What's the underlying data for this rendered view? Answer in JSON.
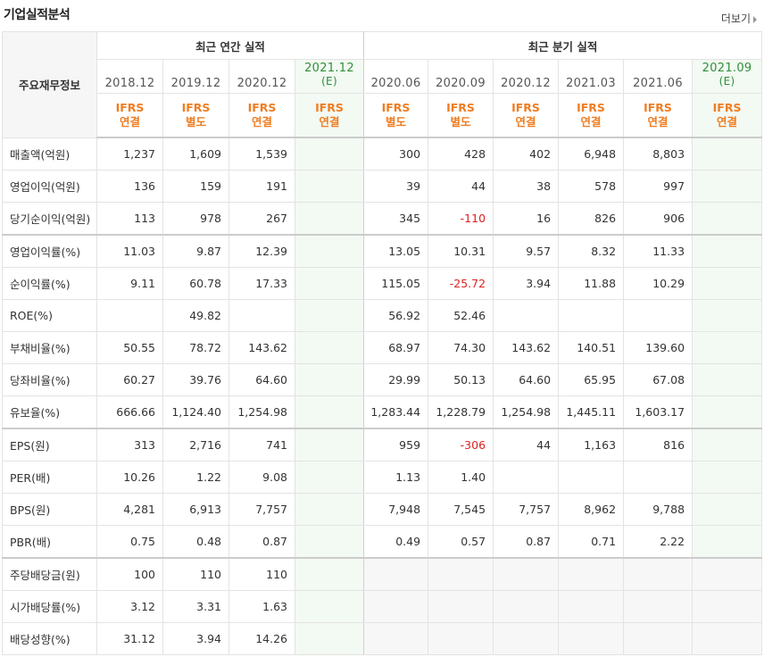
{
  "title": "기업실적분석",
  "more_label": "더보기",
  "header": {
    "corner": "주요재무정보",
    "group_annual": "최근 연간 실적",
    "group_quarter": "최근 분기 실적",
    "columns": [
      {
        "period": "2018.12",
        "est": "",
        "std1": "IFRS",
        "std2": "연결"
      },
      {
        "period": "2019.12",
        "est": "",
        "std1": "IFRS",
        "std2": "별도"
      },
      {
        "period": "2020.12",
        "est": "",
        "std1": "IFRS",
        "std2": "연결"
      },
      {
        "period": "2021.12",
        "est": "(E)",
        "std1": "IFRS",
        "std2": "연결"
      },
      {
        "period": "2020.06",
        "est": "",
        "std1": "IFRS",
        "std2": "별도"
      },
      {
        "period": "2020.09",
        "est": "",
        "std1": "IFRS",
        "std2": "별도"
      },
      {
        "period": "2020.12",
        "est": "",
        "std1": "IFRS",
        "std2": "연결"
      },
      {
        "period": "2021.03",
        "est": "",
        "std1": "IFRS",
        "std2": "연결"
      },
      {
        "period": "2021.06",
        "est": "",
        "std1": "IFRS",
        "std2": "연결"
      },
      {
        "period": "2021.09",
        "est": "(E)",
        "std1": "IFRS",
        "std2": "연결"
      }
    ]
  },
  "rows": [
    {
      "label": "매출액(억원)",
      "values": [
        "1,237",
        "1,609",
        "1,539",
        "",
        "300",
        "428",
        "402",
        "6,948",
        "8,803",
        ""
      ]
    },
    {
      "label": "영업이익(억원)",
      "values": [
        "136",
        "159",
        "191",
        "",
        "39",
        "44",
        "38",
        "578",
        "997",
        ""
      ]
    },
    {
      "label": "당기순이익(억원)",
      "values": [
        "113",
        "978",
        "267",
        "",
        "345",
        "-110",
        "16",
        "826",
        "906",
        ""
      ]
    },
    {
      "label": "영업이익률(%)",
      "values": [
        "11.03",
        "9.87",
        "12.39",
        "",
        "13.05",
        "10.31",
        "9.57",
        "8.32",
        "11.33",
        ""
      ]
    },
    {
      "label": "순이익률(%)",
      "values": [
        "9.11",
        "60.78",
        "17.33",
        "",
        "115.05",
        "-25.72",
        "3.94",
        "11.88",
        "10.29",
        ""
      ]
    },
    {
      "label": "ROE(%)",
      "values": [
        "",
        "49.82",
        "",
        "",
        "56.92",
        "52.46",
        "",
        "",
        "",
        ""
      ]
    },
    {
      "label": "부채비율(%)",
      "values": [
        "50.55",
        "78.72",
        "143.62",
        "",
        "68.97",
        "74.30",
        "143.62",
        "140.51",
        "139.60",
        ""
      ]
    },
    {
      "label": "당좌비율(%)",
      "values": [
        "60.27",
        "39.76",
        "64.60",
        "",
        "29.99",
        "50.13",
        "64.60",
        "65.95",
        "67.08",
        ""
      ]
    },
    {
      "label": "유보율(%)",
      "values": [
        "666.66",
        "1,124.40",
        "1,254.98",
        "",
        "1,283.44",
        "1,228.79",
        "1,254.98",
        "1,445.11",
        "1,603.17",
        ""
      ]
    },
    {
      "label": "EPS(원)",
      "values": [
        "313",
        "2,716",
        "741",
        "",
        "959",
        "-306",
        "44",
        "1,163",
        "816",
        ""
      ]
    },
    {
      "label": "PER(배)",
      "values": [
        "10.26",
        "1.22",
        "9.08",
        "",
        "1.13",
        "1.40",
        "",
        "",
        "",
        ""
      ]
    },
    {
      "label": "BPS(원)",
      "values": [
        "4,281",
        "6,913",
        "7,757",
        "",
        "7,948",
        "7,545",
        "7,757",
        "8,962",
        "9,788",
        ""
      ]
    },
    {
      "label": "PBR(배)",
      "values": [
        "0.75",
        "0.48",
        "0.87",
        "",
        "0.49",
        "0.57",
        "0.87",
        "0.71",
        "2.22",
        ""
      ]
    },
    {
      "label": "주당배당금(원)",
      "values": [
        "100",
        "110",
        "110",
        "",
        "",
        "",
        "",
        "",
        "",
        ""
      ]
    },
    {
      "label": "시가배당률(%)",
      "values": [
        "3.12",
        "3.31",
        "1.63",
        "",
        "",
        "",
        "",
        "",
        "",
        ""
      ]
    },
    {
      "label": "배당성향(%)",
      "values": [
        "31.12",
        "3.94",
        "14.26",
        "",
        "",
        "",
        "",
        "",
        "",
        ""
      ]
    }
  ],
  "colors": {
    "negative": "#dd2222",
    "standard": "#ef7d22",
    "estimate": "#2f8f3a",
    "estimate_bg": "#f3f9f3"
  }
}
